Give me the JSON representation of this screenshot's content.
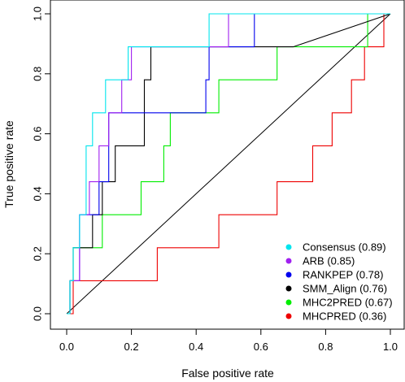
{
  "chart_data": {
    "type": "line",
    "title": "",
    "xlabel": "False positive rate",
    "ylabel": "True positive rate",
    "xlim": [
      0,
      1
    ],
    "ylim": [
      0,
      1
    ],
    "xticks": [
      "0.0",
      "0.2",
      "0.4",
      "0.6",
      "0.8",
      "1.0"
    ],
    "yticks": [
      "0.0",
      "0.2",
      "0.4",
      "0.6",
      "0.8",
      "1.0"
    ],
    "grid": false,
    "legend_position": "bottom-right",
    "diagonal_reference": true,
    "series": [
      {
        "name": "Consensus (0.89)",
        "color": "#00e5ee",
        "x": [
          0,
          0.01,
          0.01,
          0.02,
          0.02,
          0.04,
          0.04,
          0.06,
          0.06,
          0.08,
          0.08,
          0.12,
          0.12,
          0.19,
          0.19,
          0.44,
          0.44,
          1.0
        ],
        "y": [
          0,
          0,
          0.11,
          0.11,
          0.22,
          0.22,
          0.33,
          0.33,
          0.56,
          0.56,
          0.67,
          0.67,
          0.78,
          0.78,
          0.89,
          0.89,
          1.0,
          1.0
        ]
      },
      {
        "name": "ARB (0.85)",
        "color": "#a020f0",
        "x": [
          0,
          0.01,
          0.01,
          0.04,
          0.04,
          0.07,
          0.07,
          0.1,
          0.1,
          0.13,
          0.13,
          0.17,
          0.17,
          0.2,
          0.2,
          0.26,
          0.26,
          0.5,
          0.5,
          1.0
        ],
        "y": [
          0,
          0,
          0.11,
          0.11,
          0.33,
          0.33,
          0.44,
          0.44,
          0.56,
          0.56,
          0.67,
          0.67,
          0.78,
          0.78,
          0.89,
          0.89,
          0.89,
          0.89,
          1.0,
          1.0
        ]
      },
      {
        "name": "RANKPEP (0.78)",
        "color": "#0000ee",
        "x": [
          0,
          0.01,
          0.01,
          0.04,
          0.04,
          0.1,
          0.1,
          0.13,
          0.13,
          0.25,
          0.25,
          0.32,
          0.32,
          0.43,
          0.43,
          0.44,
          0.44,
          0.58,
          0.58,
          1.0
        ],
        "y": [
          0,
          0,
          0.11,
          0.11,
          0.33,
          0.33,
          0.44,
          0.44,
          0.67,
          0.67,
          0.67,
          0.67,
          0.67,
          0.67,
          0.78,
          0.78,
          0.89,
          0.89,
          1.0,
          1.0
        ]
      },
      {
        "name": "SMM_Align (0.76)",
        "color": "#000000",
        "x": [
          0,
          0.01,
          0.01,
          0.02,
          0.02,
          0.08,
          0.08,
          0.11,
          0.11,
          0.15,
          0.15,
          0.24,
          0.24,
          0.26,
          0.26,
          0.7,
          1.0
        ],
        "y": [
          0,
          0,
          0.11,
          0.11,
          0.22,
          0.22,
          0.33,
          0.33,
          0.44,
          0.44,
          0.56,
          0.56,
          0.78,
          0.78,
          0.89,
          0.89,
          1.0
        ]
      },
      {
        "name": "MHC2PRED (0.67)",
        "color": "#00ee00",
        "x": [
          0,
          0.01,
          0.01,
          0.02,
          0.02,
          0.11,
          0.11,
          0.23,
          0.23,
          0.3,
          0.3,
          0.32,
          0.32,
          0.47,
          0.47,
          0.65,
          0.65,
          0.93,
          0.93,
          1.0
        ],
        "y": [
          0,
          0,
          0.11,
          0.11,
          0.22,
          0.22,
          0.33,
          0.33,
          0.44,
          0.44,
          0.56,
          0.56,
          0.67,
          0.67,
          0.78,
          0.78,
          0.89,
          0.89,
          1.0,
          1.0
        ]
      },
      {
        "name": "MHCPRED (0.36)",
        "color": "#ee0000",
        "x": [
          0,
          0.02,
          0.02,
          0.28,
          0.28,
          0.47,
          0.47,
          0.65,
          0.65,
          0.76,
          0.76,
          0.82,
          0.82,
          0.88,
          0.88,
          0.92,
          0.92,
          0.98,
          0.98,
          1.0
        ],
        "y": [
          0,
          0,
          0.11,
          0.11,
          0.22,
          0.22,
          0.33,
          0.33,
          0.44,
          0.44,
          0.56,
          0.56,
          0.67,
          0.67,
          0.78,
          0.78,
          0.89,
          0.89,
          1.0,
          1.0
        ]
      }
    ]
  }
}
